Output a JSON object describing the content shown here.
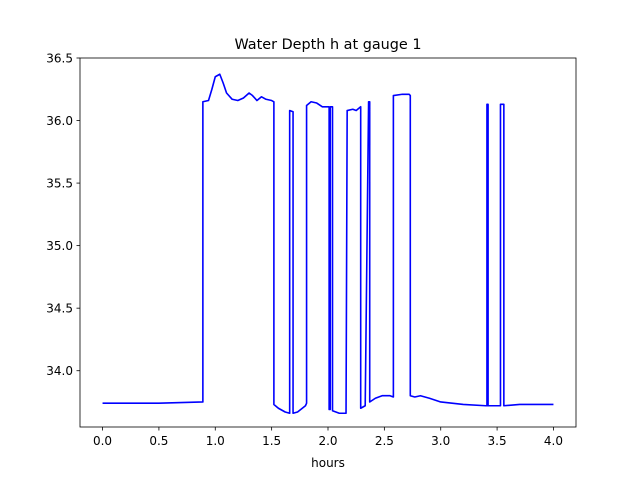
{
  "chart_data": {
    "type": "line",
    "title": "Water Depth h at gauge 1",
    "xlabel": "hours",
    "ylabel": "",
    "xlim": [
      -0.2,
      4.2
    ],
    "ylim": [
      33.55,
      36.5
    ],
    "x_ticks": [
      0.0,
      0.5,
      1.0,
      1.5,
      2.0,
      2.5,
      3.0,
      3.5,
      4.0
    ],
    "x_tick_labels": [
      "0.0",
      "0.5",
      "1.0",
      "1.5",
      "2.0",
      "2.5",
      "3.0",
      "3.5",
      "4.0"
    ],
    "y_ticks": [
      34.0,
      34.5,
      35.0,
      35.5,
      36.0,
      36.5
    ],
    "y_tick_labels": [
      "34.0",
      "34.5",
      "35.0",
      "35.5",
      "36.0",
      "36.5"
    ],
    "grid": false,
    "legend": "none",
    "series": [
      {
        "color": "#0000ff",
        "x": [
          0.0,
          0.5,
          0.89,
          0.89,
          0.94,
          0.97,
          1.0,
          1.04,
          1.07,
          1.1,
          1.15,
          1.2,
          1.25,
          1.3,
          1.33,
          1.37,
          1.41,
          1.45,
          1.5,
          1.52,
          1.52,
          1.56,
          1.62,
          1.66,
          1.66,
          1.69,
          1.69,
          1.73,
          1.8,
          1.81,
          1.81,
          1.85,
          1.9,
          1.95,
          1.99,
          2.01,
          2.01,
          2.02,
          2.02,
          2.04,
          2.04,
          2.1,
          2.16,
          2.16,
          2.17,
          2.17,
          2.22,
          2.25,
          2.29,
          2.29,
          2.33,
          2.36,
          2.36,
          2.37,
          2.37,
          2.42,
          2.48,
          2.55,
          2.58,
          2.58,
          2.66,
          2.72,
          2.73,
          2.73,
          2.77,
          2.82,
          2.9,
          3.0,
          3.2,
          3.4,
          3.41,
          3.41,
          3.42,
          3.42,
          3.5,
          3.53,
          3.53,
          3.56,
          3.56,
          3.7,
          3.85,
          4.0
        ],
        "y": [
          33.74,
          33.74,
          33.75,
          36.15,
          36.16,
          36.25,
          36.35,
          36.37,
          36.3,
          36.22,
          36.17,
          36.16,
          36.18,
          36.22,
          36.2,
          36.16,
          36.19,
          36.17,
          36.16,
          36.15,
          33.73,
          33.7,
          33.67,
          33.66,
          36.08,
          36.07,
          33.66,
          33.67,
          33.72,
          33.74,
          36.12,
          36.15,
          36.14,
          36.11,
          36.11,
          36.11,
          33.69,
          33.69,
          36.11,
          36.11,
          33.68,
          33.66,
          33.66,
          33.66,
          36.07,
          36.08,
          36.09,
          36.08,
          36.11,
          33.7,
          33.72,
          36.14,
          36.15,
          36.15,
          33.75,
          33.78,
          33.8,
          33.8,
          33.79,
          36.2,
          36.21,
          36.21,
          36.2,
          33.8,
          33.79,
          33.8,
          33.78,
          33.75,
          33.73,
          33.72,
          33.72,
          36.13,
          36.13,
          33.72,
          33.72,
          33.72,
          36.13,
          36.13,
          33.72,
          33.73,
          33.73,
          33.73
        ]
      }
    ]
  }
}
